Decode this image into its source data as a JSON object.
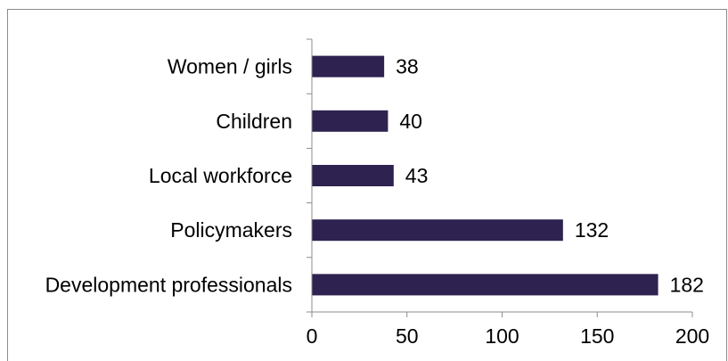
{
  "chart_data": {
    "type": "bar",
    "orientation": "horizontal",
    "categories": [
      "Women / girls",
      "Children",
      "Local workforce",
      "Policymakers",
      "Development professionals"
    ],
    "values": [
      38,
      40,
      43,
      132,
      182
    ],
    "data_labels": [
      "38",
      "40",
      "43",
      "132",
      "182"
    ],
    "xlim": [
      0,
      200
    ],
    "x_ticks": [
      "0",
      "50",
      "100",
      "150",
      "200"
    ],
    "title": "",
    "xlabel": "",
    "ylabel": "",
    "grid": false,
    "legend": "none",
    "bar_color": "#2e2250"
  }
}
